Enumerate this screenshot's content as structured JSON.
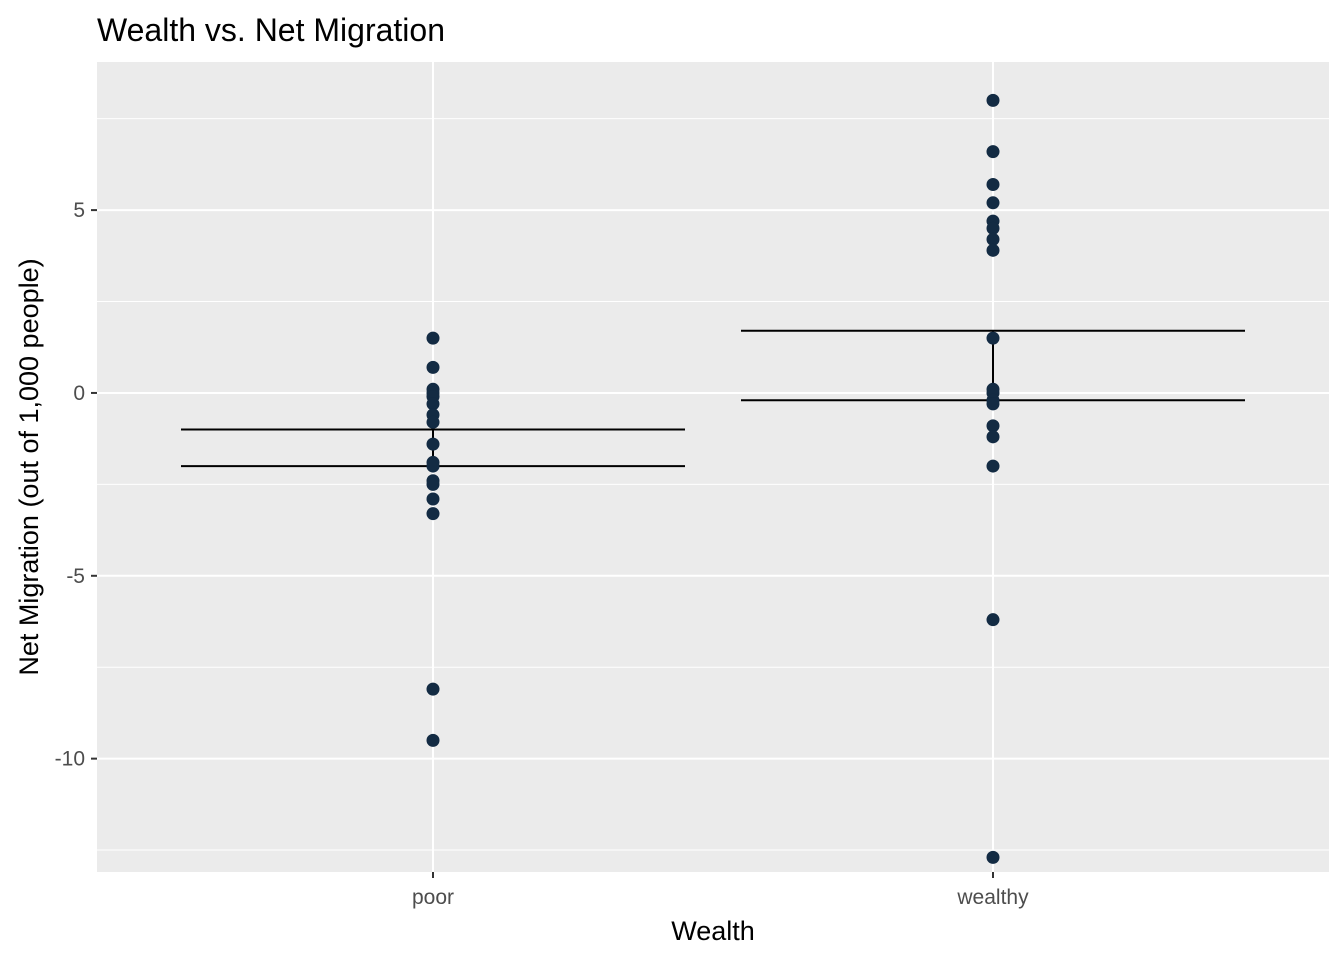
{
  "chart_data": {
    "type": "scatter",
    "title": "Wealth vs. Net Migration",
    "xlabel": "Wealth",
    "ylabel": "Net Migration (out of 1,000 people)",
    "categories": [
      "poor",
      "wealthy"
    ],
    "ylim": [
      -13.1,
      9.05
    ],
    "y_ticks": [
      -10,
      -5,
      0,
      5
    ],
    "y_tick_labels": [
      "-10",
      "-5",
      "0",
      "5"
    ],
    "grid": true,
    "legend": "none",
    "colors": {
      "panel": "#ebebeb",
      "grid": "#ffffff",
      "point": "#132b43",
      "point_light": "#3a78b0",
      "line": "#000000"
    },
    "points": [
      {
        "x": "poor",
        "y": [
          1.5,
          0.7,
          0.1,
          0.0,
          -0.1,
          -0.3,
          -0.6,
          -0.8,
          -1.4,
          -1.9,
          -2.0,
          -2.4,
          -2.5,
          -2.9,
          -3.3,
          -8.1,
          -9.5
        ]
      },
      {
        "x": "wealthy",
        "y": [
          8.0,
          6.6,
          5.7,
          5.2,
          4.7,
          4.5,
          4.2,
          3.9,
          1.5,
          0.1,
          0.0,
          -0.2,
          -0.3,
          -0.9,
          -1.2,
          -2.0,
          -6.2,
          -12.7
        ]
      }
    ],
    "summary_lines": [
      {
        "x": "poor",
        "upper": -1.0,
        "lower": -2.0
      },
      {
        "x": "wealthy",
        "upper": 1.7,
        "lower": -0.2
      }
    ]
  }
}
